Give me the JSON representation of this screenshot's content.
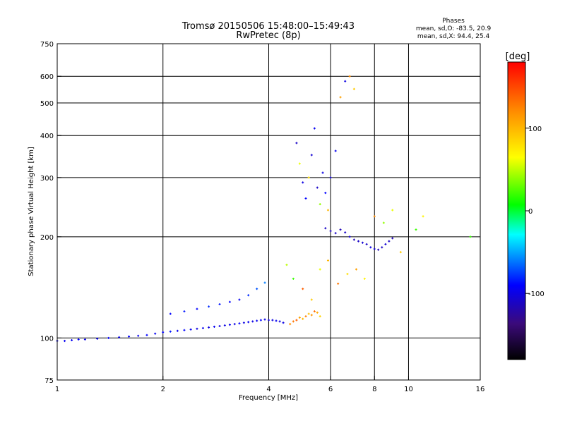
{
  "chart_data": {
    "type": "scatter",
    "title": "Tromsø 20150506 15:48:00–15:49:43",
    "subtitle": "RwPretec (8p)",
    "xlabel": "Frequency [MHz]",
    "ylabel": "Stationary phase Virtual Height [km]",
    "x_scale": "log",
    "y_scale": "log",
    "xlim": [
      1,
      16
    ],
    "ylim": [
      75,
      750
    ],
    "x_ticks": [
      1,
      2,
      4,
      6,
      8,
      10,
      16
    ],
    "y_ticks": [
      75,
      100,
      200,
      300,
      400,
      500,
      600,
      750
    ],
    "grid": true,
    "stats": {
      "heading": "Phases",
      "line_o": "mean, sd,O: -83.5, 20.9",
      "line_x": "mean, sd,X:  94.4, 25.4"
    },
    "colorbar": {
      "label": "[deg]",
      "min": -180,
      "max": 180,
      "ticks": [
        -100,
        0,
        100
      ],
      "tick_labels": [
        "-100",
        "0",
        "100"
      ],
      "colormap": "rainbow"
    },
    "series": [
      {
        "x": [
          1.0,
          1.05,
          1.1,
          1.15,
          1.2,
          1.3,
          1.4,
          1.5,
          1.6,
          1.7,
          1.8,
          1.9,
          2.0,
          2.1,
          2.2,
          2.3,
          2.4,
          2.5,
          2.6,
          2.7,
          2.8,
          2.9,
          3.0,
          3.1,
          3.2,
          3.3,
          3.4,
          3.5,
          3.6,
          3.7,
          3.8,
          3.9,
          4.0,
          4.1,
          4.2,
          4.3,
          4.4
        ],
        "y": [
          98,
          98,
          98.5,
          99,
          99,
          99.5,
          100,
          100.5,
          101,
          101.5,
          102,
          103,
          104,
          104.5,
          105,
          105.5,
          106,
          106.5,
          107,
          107.5,
          108,
          108.5,
          109,
          109.5,
          110,
          110.5,
          111,
          111.5,
          112,
          112.5,
          113,
          113.5,
          113,
          113,
          112.5,
          112,
          111
        ],
        "phase": [
          -95,
          -95,
          -95,
          -90,
          -95,
          -95,
          -90,
          -95,
          -90,
          -95,
          -90,
          -95,
          -90,
          -85,
          -95,
          -90,
          -95,
          -100,
          -95,
          -100,
          -95,
          -100,
          -100,
          -95,
          -100,
          -90,
          -100,
          -95,
          -100,
          -95,
          -90,
          -100,
          -105,
          -100,
          -95,
          -100,
          -100
        ]
      },
      {
        "x": [
          2.1,
          2.3,
          2.5,
          2.7,
          2.9,
          3.1,
          3.3,
          3.5,
          3.7,
          3.9
        ],
        "y": [
          118,
          120,
          122,
          124,
          126,
          128,
          130,
          134,
          140,
          146
        ],
        "phase": [
          -90,
          -85,
          -90,
          -80,
          -85,
          -90,
          -95,
          -80,
          -70,
          -60
        ]
      },
      {
        "x": [
          4.6,
          4.7,
          4.8,
          4.9,
          5.0,
          5.1,
          5.2,
          5.3,
          5.4,
          5.5,
          5.6
        ],
        "y": [
          110,
          112,
          113,
          115,
          114,
          116,
          118,
          117,
          120,
          119,
          116
        ],
        "phase": [
          120,
          130,
          140,
          110,
          100,
          125,
          95,
          115,
          135,
          105,
          85
        ]
      },
      {
        "x": [
          5.8,
          6.0,
          6.2,
          6.4,
          6.6,
          6.8,
          7.0,
          7.2,
          7.4,
          7.6,
          7.8,
          8.0,
          8.2,
          8.4,
          8.6,
          8.8,
          9.0
        ],
        "y": [
          212,
          208,
          205,
          210,
          206,
          200,
          196,
          194,
          192,
          190,
          186,
          184,
          183,
          186,
          190,
          194,
          198
        ],
        "phase": [
          -110,
          -115,
          -110,
          -115,
          -110,
          -105,
          -115,
          -110,
          -105,
          -110,
          -100,
          -105,
          -115,
          -110,
          -105,
          -110,
          -115
        ]
      },
      {
        "x": [
          4.8,
          4.9,
          5.0,
          5.1,
          5.2,
          5.3,
          5.4,
          5.5,
          5.6,
          5.7,
          5.8,
          5.9,
          6.0,
          6.2,
          6.4,
          6.6,
          6.8,
          7.0
        ],
        "y": [
          380,
          330,
          290,
          260,
          300,
          350,
          420,
          280,
          250,
          310,
          270,
          240,
          300,
          360,
          520,
          580,
          600,
          550
        ],
        "phase": [
          -110,
          60,
          -100,
          -90,
          80,
          -105,
          -95,
          -110,
          40,
          -100,
          -90,
          100,
          -105,
          -95,
          110,
          -100,
          120,
          90
        ]
      },
      {
        "x": [
          4.5,
          4.7,
          5.0,
          5.3,
          5.6,
          5.9,
          6.3,
          6.7,
          7.1,
          7.5,
          8.0,
          8.5,
          9.0,
          9.5,
          10.5,
          11.0,
          15.0
        ],
        "y": [
          165,
          150,
          140,
          130,
          160,
          170,
          145,
          155,
          160,
          150,
          230,
          220,
          240,
          180,
          210,
          230,
          200
        ],
        "phase": [
          50,
          20,
          140,
          90,
          60,
          100,
          130,
          80,
          110,
          70,
          120,
          40,
          60,
          90,
          20,
          70,
          20
        ]
      }
    ]
  }
}
